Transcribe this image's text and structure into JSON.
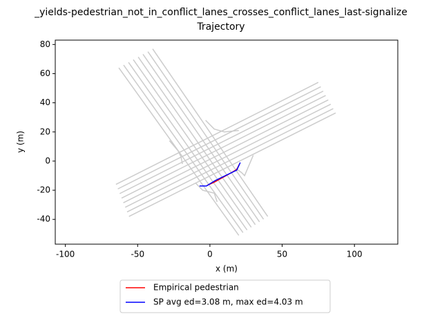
{
  "chart_data": {
    "type": "line",
    "title_lines": [
      "_yields-pedestrian_not_in_conflict_lanes_crosses_conflict_lanes_last-signalize",
      "Trajectory"
    ],
    "x_label": "x (m)",
    "y_label": "y (m)",
    "xlim": [
      -107,
      130
    ],
    "ylim": [
      -57,
      83
    ],
    "xticks": [
      -100,
      -50,
      0,
      50,
      100
    ],
    "yticks": [
      -40,
      -20,
      0,
      20,
      40,
      60,
      80
    ],
    "background_color": "#cccccc",
    "background_lines": [
      {
        "x": [
          -63,
          20
        ],
        "y": [
          64,
          -51
        ]
      },
      {
        "x": [
          -59.7,
          22.9
        ],
        "y": [
          65.9,
          -49.1
        ]
      },
      {
        "x": [
          -56.3,
          25.7
        ],
        "y": [
          67.7,
          -47.3
        ]
      },
      {
        "x": [
          -53,
          28.6
        ],
        "y": [
          69.6,
          -45.4
        ]
      },
      {
        "x": [
          -49.6,
          31.4
        ],
        "y": [
          71.4,
          -43.6
        ]
      },
      {
        "x": [
          -46.3,
          34.3
        ],
        "y": [
          73.3,
          -41.7
        ]
      },
      {
        "x": [
          -42.9,
          37.1
        ],
        "y": [
          75.1,
          -39.9
        ]
      },
      {
        "x": [
          -39.6,
          40
        ],
        "y": [
          77,
          -38
        ]
      },
      {
        "x": [
          -65,
          75
        ],
        "y": [
          -16,
          54
        ]
      },
      {
        "x": [
          -63.7,
          76.7
        ],
        "y": [
          -19.1,
          51
        ]
      },
      {
        "x": [
          -62.4,
          78.4
        ],
        "y": [
          -22.3,
          48
        ]
      },
      {
        "x": [
          -61.1,
          80.1
        ],
        "y": [
          -25.4,
          45
        ]
      },
      {
        "x": [
          -59.9,
          81.9
        ],
        "y": [
          -28.6,
          42
        ]
      },
      {
        "x": [
          -58.6,
          83.6
        ],
        "y": [
          -31.7,
          39
        ]
      },
      {
        "x": [
          -57.3,
          85.3
        ],
        "y": [
          -34.9,
          36
        ]
      },
      {
        "x": [
          -56,
          87
        ],
        "y": [
          -38,
          33
        ]
      },
      {
        "x": [
          -28,
          -22,
          -20,
          -19
        ],
        "y": [
          14,
          7,
          3,
          -2
        ]
      },
      {
        "x": [
          -3,
          3,
          10,
          20
        ],
        "y": [
          28,
          22,
          20,
          21
        ]
      },
      {
        "x": [
          -10,
          -5,
          3,
          5
        ],
        "y": [
          -15,
          -20,
          -22,
          -28
        ]
      },
      {
        "x": [
          18,
          22,
          24,
          30
        ],
        "y": [
          -5,
          -8,
          -10,
          4
        ]
      }
    ],
    "legend_loc": "below",
    "series": [
      {
        "name": "Empirical pedestrian",
        "color": "#ff0000",
        "x": [
          -2,
          3,
          14.8,
          18.6,
          20.5
        ],
        "y": [
          -16.7,
          -14.5,
          -8,
          -5.7,
          -1.9
        ]
      },
      {
        "name": "SP avg ed=3.08 m, max ed=4.03 m",
        "color": "#0000ff",
        "x": [
          -7.2,
          -2.4,
          3.8,
          18.6,
          21
        ],
        "y": [
          -17.1,
          -17.1,
          -13.3,
          -6.2,
          -1
        ]
      }
    ]
  }
}
